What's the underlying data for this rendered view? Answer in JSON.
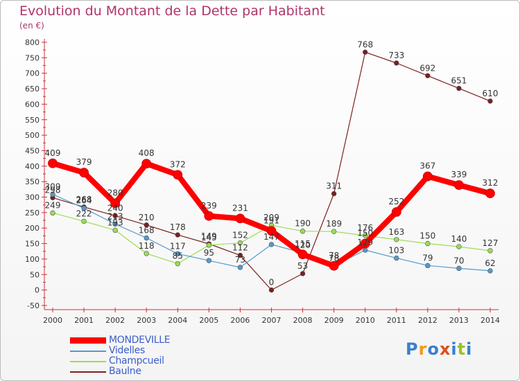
{
  "title": "Evolution du Montant de la Dette par Habitant",
  "unit_label": "(en €)",
  "logo_text": "Proxiti",
  "logo_colors": [
    "#3a7fd0",
    "#f29a19",
    "#3a7fd0",
    "#e04f1a",
    "#3a7fd0",
    "#9ac21f",
    "#3a7fd0"
  ],
  "chart_data": {
    "type": "line",
    "title": "Evolution du Montant de la Dette par Habitant",
    "ylabel": "(en €)",
    "xlabel": "",
    "x": [
      "2000",
      "2001",
      "2002",
      "2003",
      "2004",
      "2005",
      "2006",
      "2007",
      "2008",
      "2009",
      "2010",
      "2011",
      "2012",
      "2013",
      "2014"
    ],
    "yticks": [
      "-50",
      "0",
      "50",
      "100",
      "150",
      "200",
      "250",
      "300",
      "350",
      "400",
      "450",
      "500",
      "550",
      "600",
      "650",
      "700",
      "750",
      "800"
    ],
    "ylim": [
      -50,
      800
    ],
    "grid": false,
    "legend_position": "bottom-left",
    "series": [
      {
        "name": "MONDEVILLE",
        "color": "#ff0000",
        "values": [
          409,
          379,
          280,
          408,
          372,
          239,
          231,
          191,
          115,
          78,
          150,
          252,
          367,
          339,
          312
        ]
      },
      {
        "name": "Videlles",
        "color": "#5599cc",
        "values": [
          309,
          264,
          213,
          168,
          117,
          95,
          73,
          147,
          120,
          78,
          129,
          103,
          79,
          70,
          62
        ]
      },
      {
        "name": "Champcueil",
        "color": "#99dd55",
        "values": [
          249,
          222,
          193,
          118,
          85,
          145,
          152,
          209,
          190,
          189,
          176,
          163,
          150,
          140,
          127
        ]
      },
      {
        "name": "Baulne",
        "color": "#7a2020",
        "values": [
          298,
          268,
          240,
          210,
          178,
          149,
          112,
          0,
          53,
          311,
          768,
          733,
          692,
          651,
          610
        ]
      }
    ]
  }
}
